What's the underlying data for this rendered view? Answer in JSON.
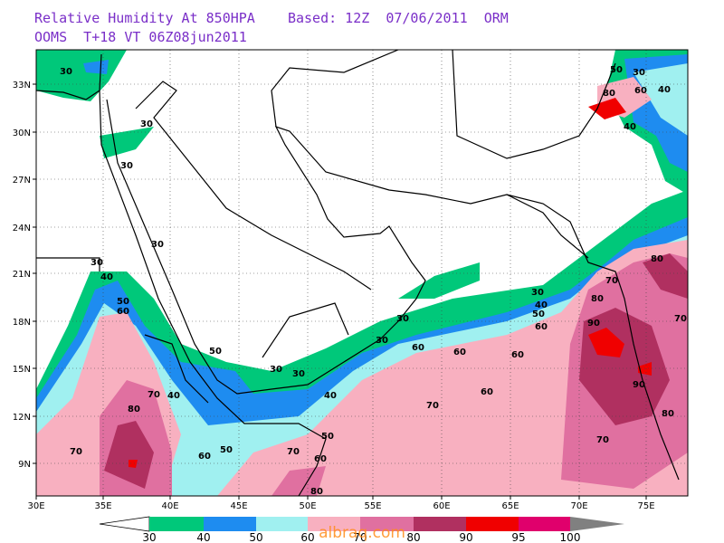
{
  "header": {
    "line1": "Relative Humidity At 850HPA    Based: 12Z  07/06/2011  ORM",
    "line2": "OOMS  T+18 VT 06Z08jun2011"
  },
  "lat_labels": [
    "33N",
    "30N",
    "27N",
    "24N",
    "21N",
    "18N",
    "15N",
    "12N",
    "9N"
  ],
  "lon_labels": [
    "30E",
    "35E",
    "40E",
    "45E",
    "50E",
    "55E",
    "60E",
    "65E",
    "70E",
    "75E"
  ],
  "contour_labels": [
    "30",
    "30",
    "30",
    "30",
    "30",
    "40",
    "50",
    "60",
    "50",
    "40",
    "30",
    "30",
    "40",
    "30",
    "30",
    "60",
    "60",
    "60",
    "30",
    "40",
    "50",
    "60",
    "60",
    "70",
    "70",
    "80",
    "70",
    "50",
    "50",
    "60",
    "70",
    "60",
    "80",
    "80",
    "90",
    "70",
    "80",
    "70",
    "90",
    "80",
    "70",
    "80",
    "40",
    "50",
    "30",
    "60",
    "40"
  ],
  "colorbar_labels": [
    "30",
    "40",
    "50",
    "60",
    "70",
    "80",
    "90",
    "95",
    "100"
  ],
  "watermark": "albraq.com"
}
